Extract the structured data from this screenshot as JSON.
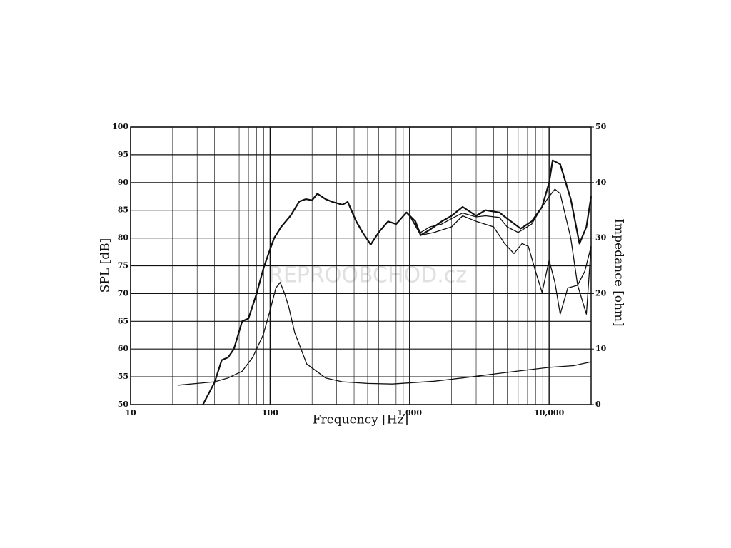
{
  "chart_data": {
    "type": "line",
    "xlabel": "Frequency [Hz]",
    "ylabel": "SPL [dB]",
    "y2label": "Impedance [ohm]",
    "watermark": "REPROOBCHOD.cz",
    "xscale": "log",
    "grid": true,
    "xlim": [
      10,
      20000
    ],
    "xticks": [
      10,
      100,
      {
        "value": 1000,
        "label": "1,000"
      },
      {
        "value": 10000,
        "label": "10,000"
      }
    ],
    "xminorticks": [
      20,
      30,
      40,
      50,
      60,
      70,
      80,
      90,
      200,
      300,
      400,
      500,
      600,
      700,
      800,
      900,
      2000,
      3000,
      4000,
      5000,
      6000,
      7000,
      8000,
      9000
    ],
    "ylim": [
      50,
      100
    ],
    "yticks": [
      50,
      55,
      60,
      65,
      70,
      75,
      80,
      85,
      90,
      95,
      100
    ],
    "y2lim": [
      0,
      50
    ],
    "y2ticks": [
      0,
      10,
      20,
      30,
      40,
      50
    ],
    "series": [
      {
        "color": "#111111",
        "width": 2.2,
        "x": [
          33,
          40,
          45,
          50,
          55,
          63,
          70,
          80,
          90,
          100,
          107,
          120,
          140,
          162,
          180,
          200,
          218,
          250,
          280,
          329,
          360,
          414,
          460,
          526,
          600,
          700,
          800,
          950,
          1100,
          1200,
          1400,
          1700,
          2000,
          2400,
          3000,
          3500,
          4400,
          5000,
          6250,
          7500,
          8900,
          10000,
          10600,
          12000,
          14300,
          16500,
          18500,
          20000
        ],
        "values": [
          50,
          54,
          58,
          58.5,
          60,
          65,
          65.5,
          70,
          74.7,
          78,
          80,
          82,
          84,
          86.6,
          87,
          86.8,
          88,
          87,
          86.5,
          86,
          86.5,
          83,
          81,
          78.8,
          81,
          83,
          82.5,
          84.6,
          83,
          80.5,
          81.5,
          83,
          84,
          85.6,
          84,
          85,
          84.6,
          83.5,
          81.7,
          83,
          85.6,
          90,
          94,
          93.3,
          87,
          79,
          82,
          87.5
        ]
      },
      {
        "color": "#111111",
        "width": 1.3,
        "x": [
          1000,
          1200,
          1400,
          1700,
          2000,
          2400,
          3000,
          3500,
          4400,
          5000,
          6000,
          7500,
          8900,
          10000,
          11000,
          12000,
          14300,
          16000,
          18000,
          20000
        ],
        "values": [
          84,
          81,
          82,
          82.5,
          83.5,
          84.5,
          83.8,
          84,
          83.7,
          82,
          81,
          82.5,
          85.6,
          87.5,
          88.8,
          88,
          80,
          71.5,
          74,
          78.5
        ]
      },
      {
        "color": "#111111",
        "width": 1.3,
        "x": [
          1000,
          1200,
          1500,
          2000,
          2400,
          3000,
          4000,
          4800,
          5600,
          6400,
          7100,
          8000,
          8900,
          10000,
          11000,
          12000,
          13600,
          16000,
          18500,
          20000
        ],
        "values": [
          84,
          80.5,
          81,
          82,
          84,
          83,
          82,
          79,
          77.2,
          79,
          78.5,
          74,
          70.2,
          76,
          72,
          66.3,
          71,
          71.5,
          66.3,
          78.5
        ]
      },
      {
        "color": "#111111",
        "width": 1.3,
        "axis": "y2",
        "x": [
          22,
          30,
          40,
          50,
          63,
          75,
          89,
          100,
          110,
          118,
          127,
          136,
          150,
          183,
          250,
          329,
          500,
          750,
          1500,
          2400,
          5000,
          10000,
          15000,
          20000
        ],
        "values": [
          3.5,
          3.8,
          4.1,
          4.8,
          6,
          8.5,
          12.5,
          17,
          21,
          22,
          20,
          17.6,
          13,
          7.3,
          4.8,
          4.1,
          3.8,
          3.7,
          4.2,
          4.8,
          5.8,
          6.7,
          7,
          7.7
        ]
      }
    ]
  }
}
